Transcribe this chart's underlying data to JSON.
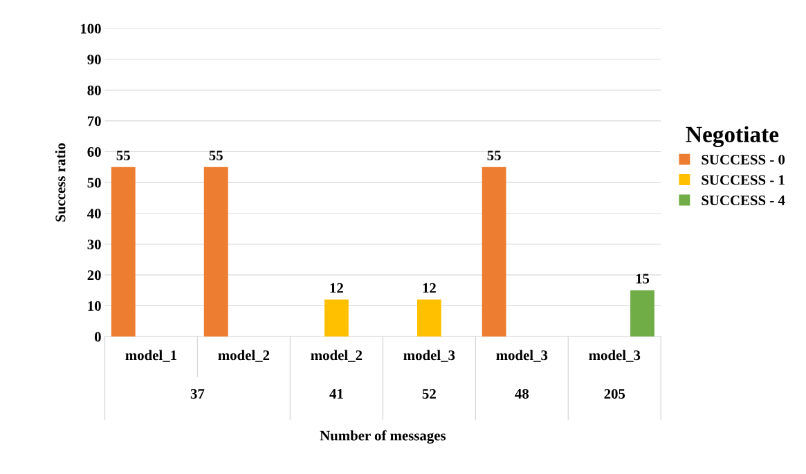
{
  "chart_data": {
    "type": "bar",
    "xlabel": "Number of messages",
    "ylabel": "Success ratio",
    "legend_title": "Negotiate",
    "categories": [
      "model_1",
      "model_2",
      "model_2",
      "model_3",
      "model_3",
      "model_3"
    ],
    "series": [
      {
        "name": "SUCCESS - 0",
        "color": "#ed7d31",
        "values": [
          55,
          55,
          0,
          0,
          55,
          0
        ],
        "value_labels": [
          "55",
          "55",
          null,
          null,
          "55",
          null
        ]
      },
      {
        "name": "SUCCESS - 1",
        "color": "#ffc000",
        "values": [
          0,
          0,
          12,
          12,
          0,
          0
        ],
        "value_labels": [
          null,
          null,
          "12",
          "12",
          null,
          null
        ]
      },
      {
        "name": "SUCCESS - 4",
        "color": "#70ad47",
        "values": [
          0,
          0,
          0,
          0,
          0,
          15
        ],
        "value_labels": [
          null,
          null,
          null,
          null,
          null,
          "15"
        ]
      }
    ],
    "annotations": [
      "37",
      "41",
      "52",
      "48",
      "205"
    ],
    "ylim": [
      0,
      100
    ],
    "yticks": [
      0,
      10,
      20,
      30,
      40,
      50,
      60,
      70,
      80,
      90,
      100
    ],
    "grid": "y",
    "legend": "right"
  }
}
